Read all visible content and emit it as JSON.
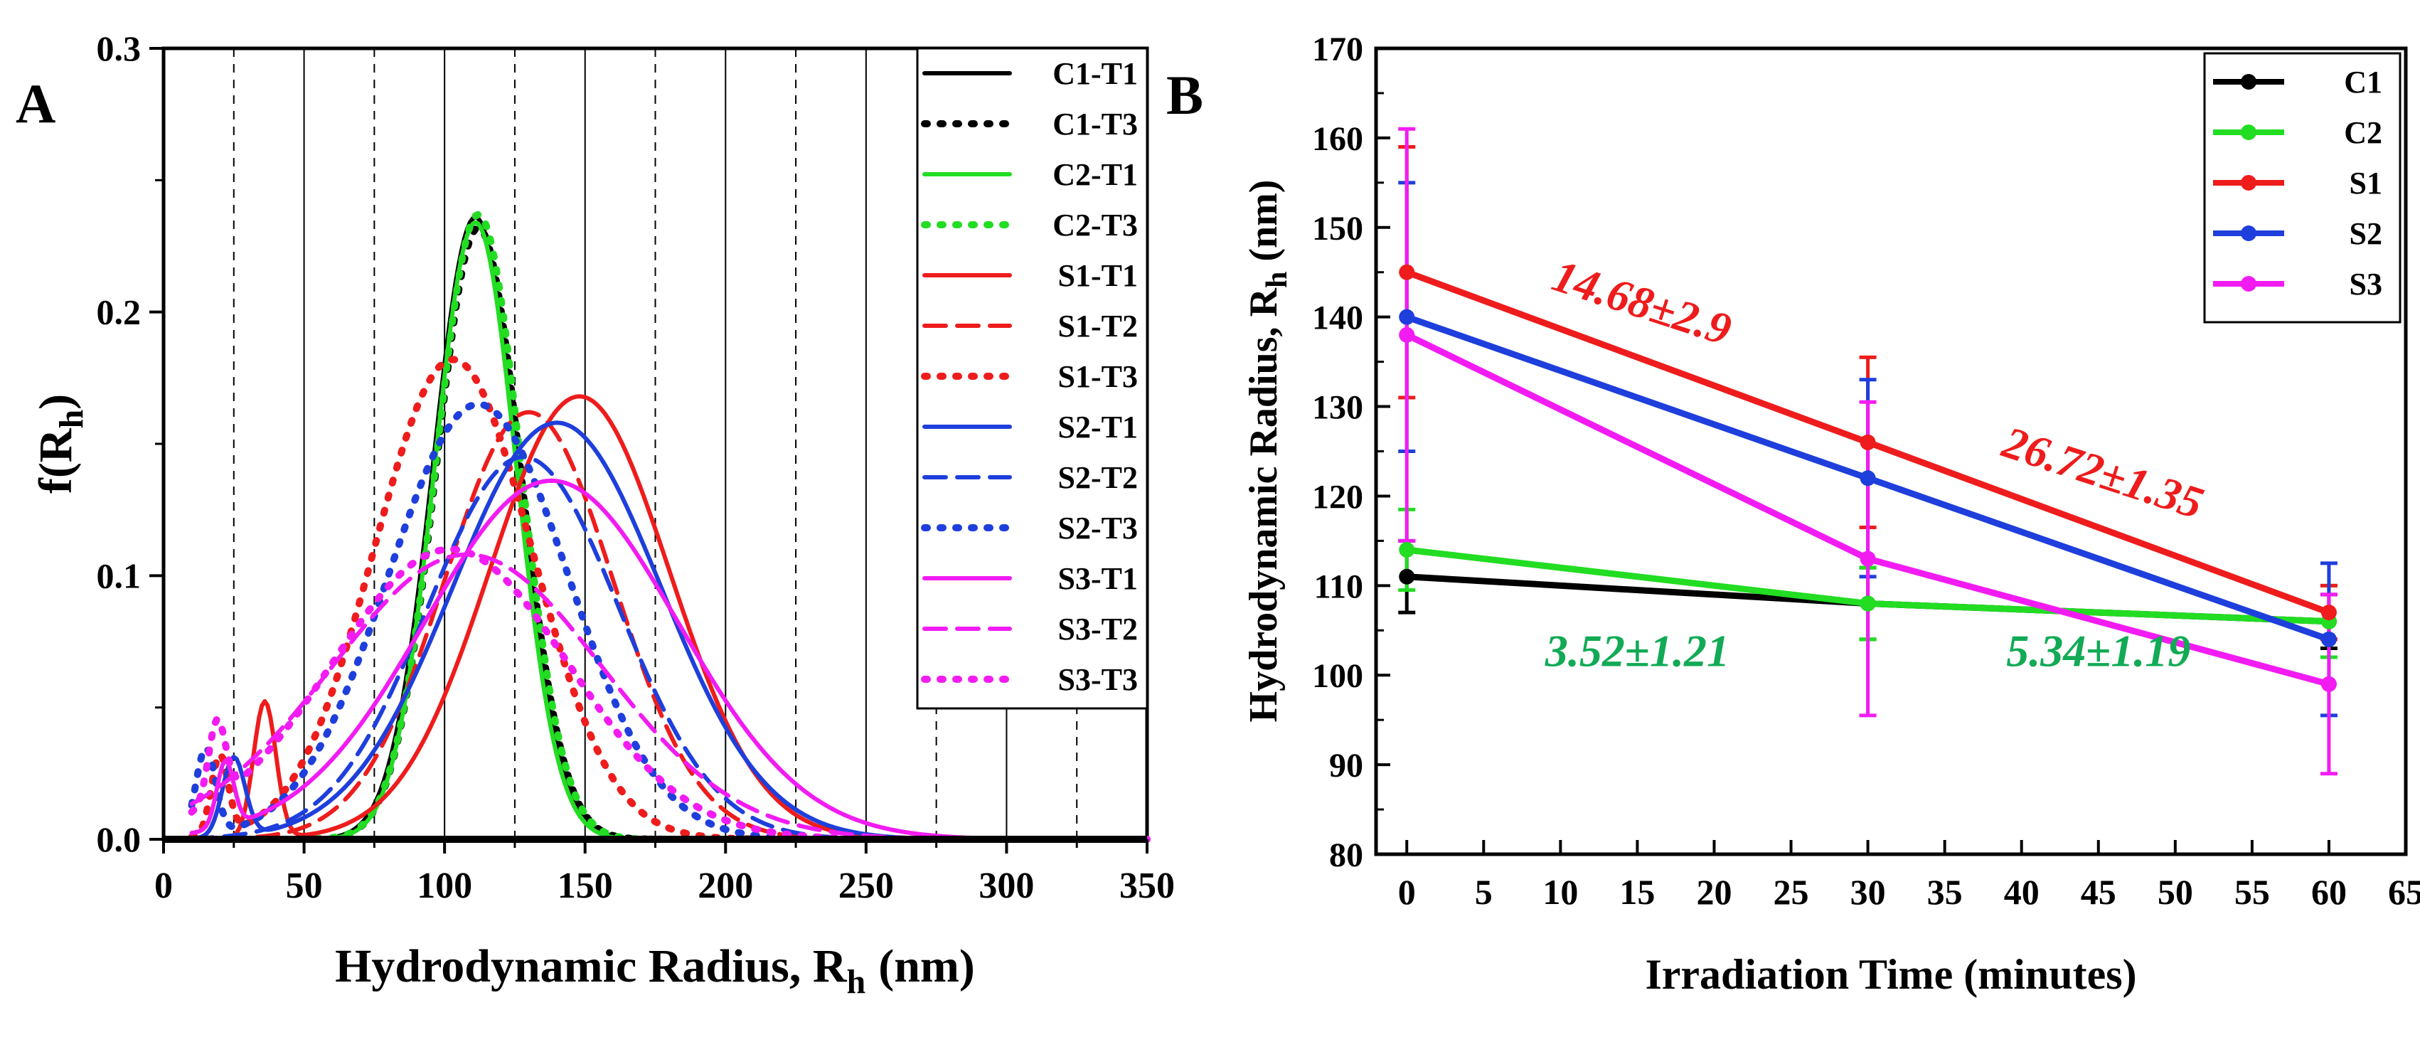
{
  "figure": {
    "colors": {
      "black": "#000000",
      "green": "#22dd22",
      "red": "#ee1c1c",
      "blue": "#1e3fdc",
      "magenta": "#f21cf2",
      "annot_green": "#12aa55"
    }
  },
  "chart_data": [
    {
      "panel_label": "A",
      "type": "line",
      "xlabel": "Hydrodynamic Radius, R",
      "xlabel_sub": "h",
      "xlabel_unit": "(nm)",
      "ylabel": "f(R",
      "ylabel_sub": "h",
      "ylabel_close": ")",
      "xlim": [
        0,
        350
      ],
      "ylim": [
        0,
        0.3
      ],
      "xticks": [
        0,
        50,
        100,
        150,
        200,
        250,
        300,
        350
      ],
      "yticks": [
        0.0,
        0.1,
        0.2,
        0.3
      ],
      "ytick_labels": [
        "0.0",
        "0.1",
        "0.2",
        "0.3"
      ],
      "grid_solid_x": [
        50,
        100,
        150,
        200,
        250,
        300
      ],
      "grid_dashed_x": [
        25,
        75,
        125,
        175,
        225,
        275,
        325
      ],
      "legend_position": "top-right",
      "series": [
        {
          "name": "C1-T1",
          "color": "#000000",
          "style": "solid",
          "components": [
            {
              "amp": 0.236,
              "mu": 111,
              "sigma": 15
            }
          ]
        },
        {
          "name": "C1-T3",
          "color": "#000000",
          "style": "dotted",
          "components": [
            {
              "amp": 0.232,
              "mu": 112,
              "sigma": 15
            }
          ]
        },
        {
          "name": "C2-T1",
          "color": "#22dd22",
          "style": "solid",
          "components": [
            {
              "amp": 0.234,
              "mu": 111,
              "sigma": 14.5
            }
          ]
        },
        {
          "name": "C2-T3",
          "color": "#22dd22",
          "style": "dotted",
          "components": [
            {
              "amp": 0.237,
              "mu": 112,
              "sigma": 15
            }
          ]
        },
        {
          "name": "S1-T1",
          "color": "#ee1c1c",
          "style": "solid",
          "components": [
            {
              "amp": 0.052,
              "mu": 36,
              "sigma": 4
            },
            {
              "amp": 0.168,
              "mu": 148,
              "sigma": 32
            }
          ]
        },
        {
          "name": "S1-T2",
          "color": "#ee1c1c",
          "style": "dashed",
          "components": [
            {
              "amp": 0.162,
              "mu": 130,
              "sigma": 30
            }
          ]
        },
        {
          "name": "S1-T3",
          "color": "#ee1c1c",
          "style": "dotted",
          "components": [
            {
              "amp": 0.03,
              "mu": 20,
              "sigma": 3
            },
            {
              "amp": 0.182,
              "mu": 103,
              "sigma": 28
            }
          ]
        },
        {
          "name": "S2-T1",
          "color": "#1e3fdc",
          "style": "solid",
          "components": [
            {
              "amp": 0.03,
              "mu": 25,
              "sigma": 4
            },
            {
              "amp": 0.158,
              "mu": 140,
              "sigma": 37
            }
          ]
        },
        {
          "name": "S2-T2",
          "color": "#1e3fdc",
          "style": "dashed",
          "components": [
            {
              "amp": 0.145,
              "mu": 128,
              "sigma": 34
            }
          ]
        },
        {
          "name": "S2-T3",
          "color": "#1e3fdc",
          "style": "dotted",
          "components": [
            {
              "amp": 0.033,
              "mu": 15,
              "sigma": 3.5
            },
            {
              "amp": 0.165,
              "mu": 112,
              "sigma": 32
            }
          ]
        },
        {
          "name": "S3-T1",
          "color": "#f21cf2",
          "style": "solid",
          "components": [
            {
              "amp": 0.025,
              "mu": 22,
              "sigma": 3
            },
            {
              "amp": 0.136,
              "mu": 138,
              "sigma": 45
            }
          ]
        },
        {
          "name": "S3-T2",
          "color": "#f21cf2",
          "style": "dashed",
          "components": [
            {
              "amp": 0.108,
              "mu": 108,
              "sigma": 48
            }
          ]
        },
        {
          "name": "S3-T3",
          "color": "#f21cf2",
          "style": "dotted",
          "components": [
            {
              "amp": 0.03,
              "mu": 19,
              "sigma": 3
            },
            {
              "amp": 0.11,
              "mu": 102,
              "sigma": 42
            }
          ]
        }
      ]
    },
    {
      "panel_label": "B",
      "type": "line",
      "xlabel": "Irradiation Time (minutes)",
      "ylabel": "Hydrodynamic Radius, R",
      "ylabel_sub": "h",
      "ylabel_unit": "(nm)",
      "xlim": [
        -2,
        65
      ],
      "ylim": [
        80,
        170
      ],
      "xticks": [
        0,
        5,
        10,
        15,
        20,
        25,
        30,
        35,
        40,
        45,
        50,
        55,
        60,
        65
      ],
      "yticks": [
        80,
        90,
        100,
        110,
        120,
        130,
        140,
        150,
        160,
        170
      ],
      "legend_position": "top-right",
      "x": [
        0,
        30,
        60
      ],
      "series": [
        {
          "name": "C1",
          "color": "#000000",
          "values": [
            111,
            108,
            106
          ],
          "errors": [
            4,
            4,
            3
          ]
        },
        {
          "name": "C2",
          "color": "#22dd22",
          "values": [
            114,
            108,
            106
          ],
          "errors": [
            4.5,
            4,
            4
          ]
        },
        {
          "name": "S1",
          "color": "#ee1c1c",
          "values": [
            145,
            126,
            107
          ],
          "errors": [
            14,
            9.5,
            3
          ]
        },
        {
          "name": "S2",
          "color": "#1e3fdc",
          "values": [
            140,
            122,
            104
          ],
          "errors": [
            15,
            11,
            8.5
          ]
        },
        {
          "name": "S3",
          "color": "#f21cf2",
          "values": [
            138,
            113,
            99
          ],
          "errors": [
            23,
            17.5,
            10
          ]
        }
      ],
      "annotations": [
        {
          "text": "14.68±2.9",
          "color": "#ee1c1c",
          "x": 15,
          "y": 140,
          "rotate": 18
        },
        {
          "text": "26.72±1.35",
          "color": "#ee1c1c",
          "x": 45,
          "y": 121,
          "rotate": 18
        },
        {
          "text": "3.52±1.21",
          "color": "#12aa55",
          "x": 15,
          "y": 101,
          "rotate": 0
        },
        {
          "text": "5.34±1.19",
          "color": "#12aa55",
          "x": 45,
          "y": 101,
          "rotate": 0
        }
      ]
    }
  ]
}
